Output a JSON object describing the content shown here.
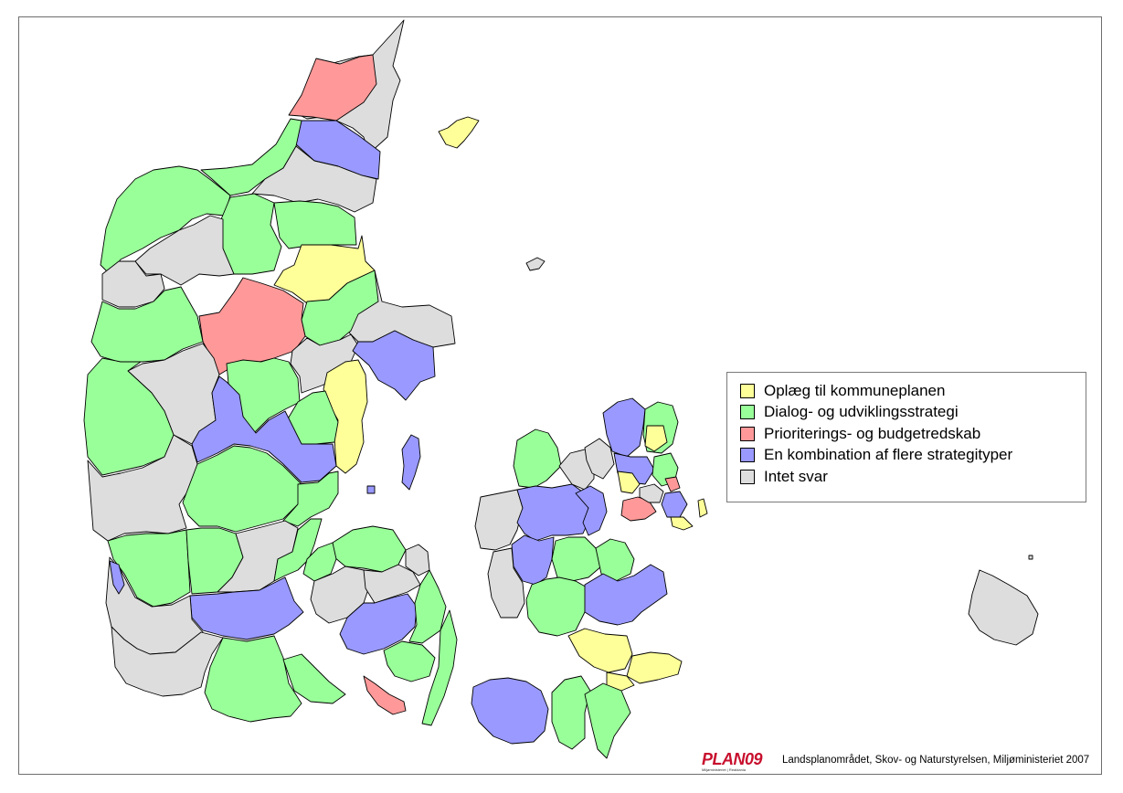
{
  "legend": {
    "items": [
      {
        "label": "Oplæg til kommuneplanen",
        "color": "#ffff99"
      },
      {
        "label": "Dialog- og udviklingsstrategi",
        "color": "#99ff99"
      },
      {
        "label": "Prioriterings- og budgetredskab",
        "color": "#ff9999"
      },
      {
        "label": "En kombination af flere strategityper",
        "color": "#9999ff"
      },
      {
        "label": "Intet svar",
        "color": "#dddddd"
      }
    ]
  },
  "footer": {
    "logo": "PLAN09",
    "logo_subtitle": "Miljøministeriet | Realdania",
    "credit": "Landsplanområdet, Skov- og Naturstyrelsen, Miljøministeriet 2007"
  },
  "colors": {
    "yellow": "#ffff99",
    "green": "#99ff99",
    "red": "#ff9999",
    "blue": "#9999ff",
    "grey": "#dddddd",
    "logo_red": "#c8102e"
  }
}
